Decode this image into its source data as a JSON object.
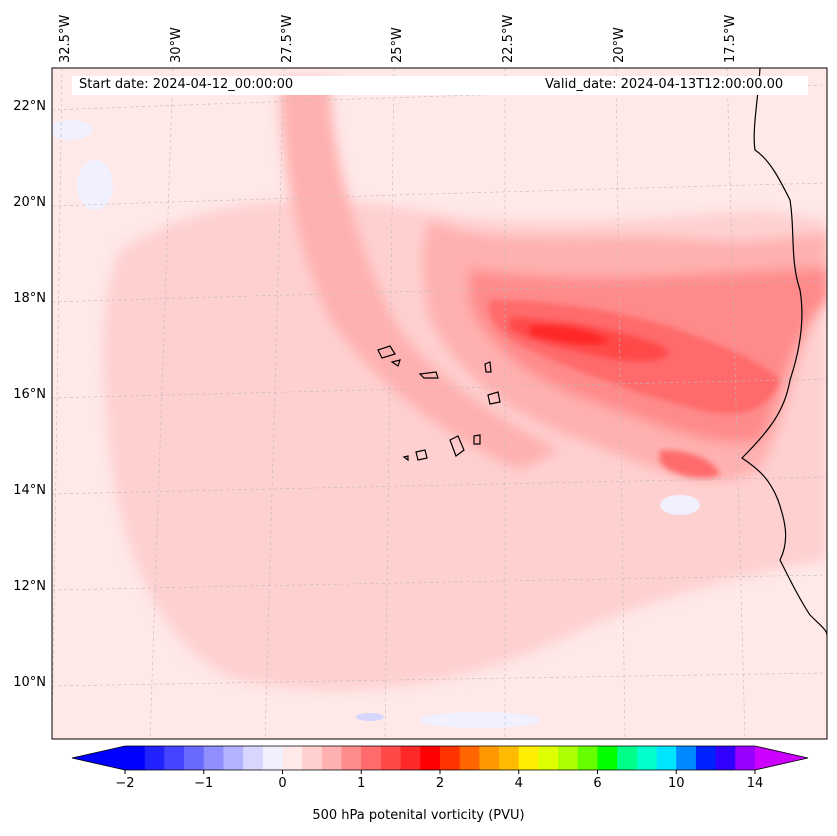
{
  "map": {
    "start_date": "Start date: 2024-04-12_00:00:00",
    "valid_date": "Valid_date: 2024-04-13T12:00:00.00",
    "lon_labels": [
      "32.5°W",
      "30°W",
      "27.5°W",
      "25°W",
      "22.5°W",
      "20°W",
      "17.5°W"
    ],
    "lat_labels": [
      "22°N",
      "20°N",
      "18°N",
      "16°N",
      "14°N",
      "12°N",
      "10°N"
    ]
  },
  "colorbar": {
    "title": "500 hPa potenital vorticity (PVU)",
    "tick_labels": [
      "−2",
      "−1",
      "0",
      "1",
      "2",
      "4",
      "6",
      "10",
      "14"
    ],
    "colors": [
      "#0000ff",
      "#2222ff",
      "#4545ff",
      "#6a6aff",
      "#8f8fff",
      "#b3b3ff",
      "#d6d6ff",
      "#f0f0ff",
      "#ffe8e8",
      "#ffd0d0",
      "#ffb0b0",
      "#ff8a8a",
      "#ff6a6a",
      "#ff4848",
      "#ff2828",
      "#ff0000",
      "#ff3300",
      "#ff6600",
      "#ff9900",
      "#ffbb00",
      "#ffee00",
      "#ddff00",
      "#aaff00",
      "#66ff00",
      "#00ff00",
      "#00ff88",
      "#00ffcc",
      "#00e5ff",
      "#0088ff",
      "#0022ff",
      "#3300ff",
      "#9900ff"
    ],
    "under_color": "#0000ff",
    "over_color": "#cc00ff"
  }
}
